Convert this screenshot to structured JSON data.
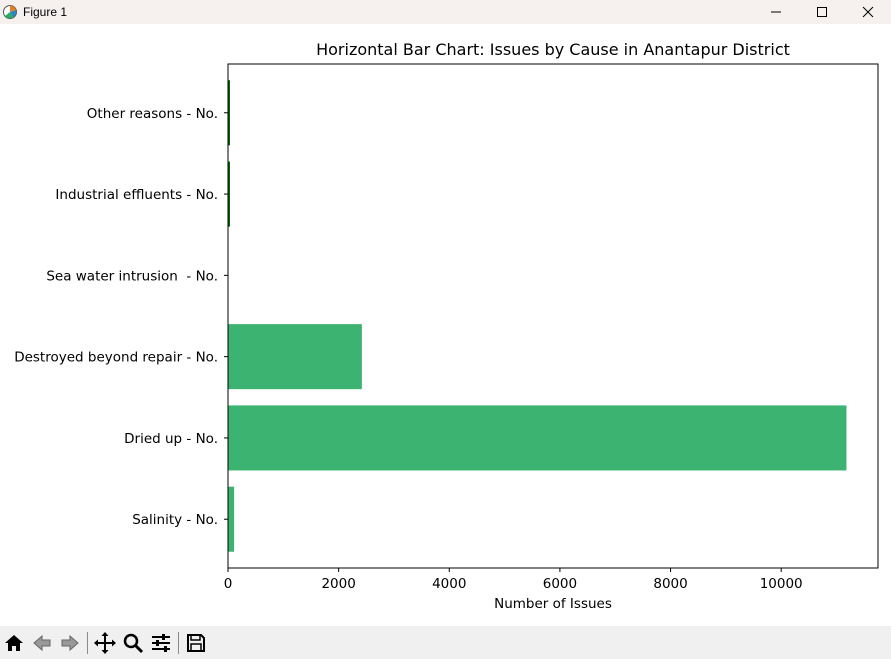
{
  "window": {
    "title": "Figure 1",
    "controls": [
      "minimize-icon",
      "maximize-icon",
      "close-icon"
    ]
  },
  "toolbar": {
    "buttons": [
      "home-icon",
      "back-icon",
      "forward-icon",
      "pan-icon",
      "zoom-icon",
      "configure-icon",
      "save-icon"
    ]
  },
  "chart_data": {
    "type": "bar",
    "orientation": "horizontal",
    "title": "Horizontal Bar Chart: Issues by Cause in Anantapur District",
    "xlabel": "Number of Issues",
    "ylabel": "",
    "categories": [
      "Salinity - No.",
      "Dried up - No.",
      "Destroyed beyond repair - No.",
      "Sea water intrusion  - No.",
      "Industrial effluents - No.",
      "Other reasons - No."
    ],
    "values": [
      110,
      11180,
      2420,
      0,
      5,
      10
    ],
    "xlim": [
      0,
      11750
    ],
    "xticks": [
      0,
      2000,
      4000,
      6000,
      8000,
      10000
    ],
    "color": "#3cb371",
    "edge_color": "#006400",
    "grid": false,
    "legend": false
  }
}
